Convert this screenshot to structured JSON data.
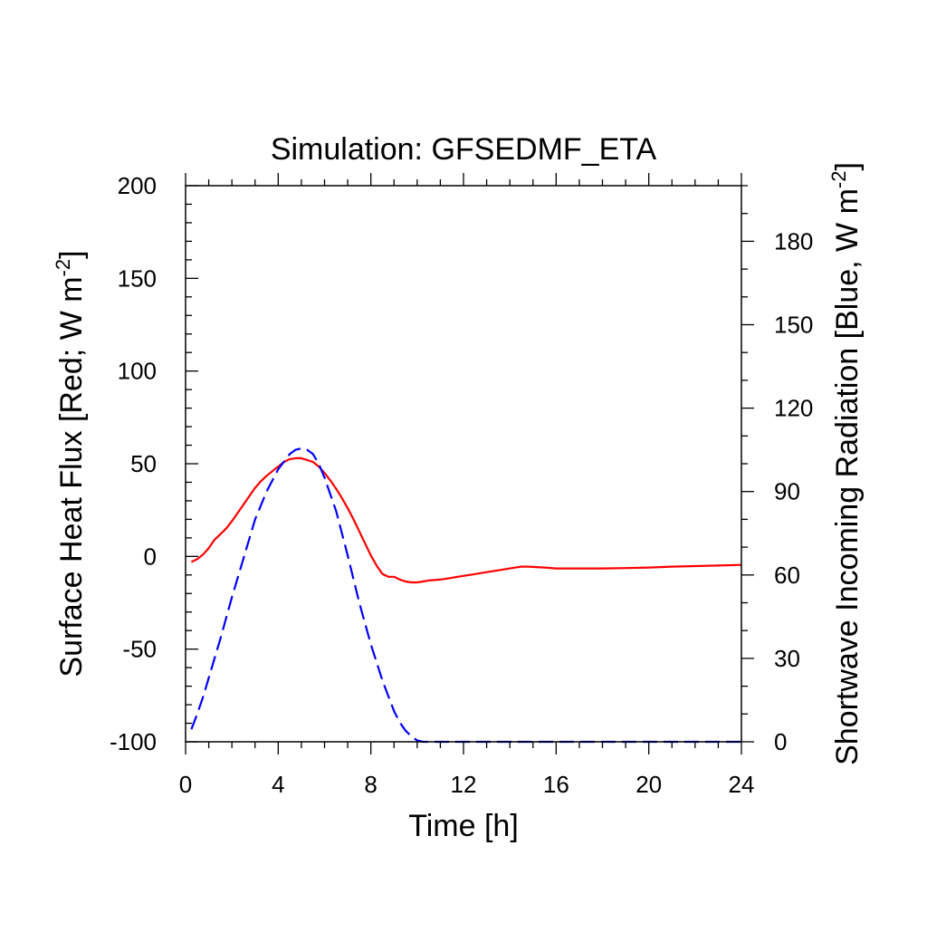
{
  "chart_data": {
    "type": "line",
    "title": "Simulation: GFSEDMF_ETA",
    "xlabel": "Time [h]",
    "ylabel_left": {
      "text": "Surface Heat Flux [Red; W m",
      "sup": "-2",
      "tail": "]"
    },
    "ylabel_right": {
      "text": "Shortwave Incoming Radiation [Blue, W m",
      "sup": "-2",
      "tail": "]"
    },
    "xlim": [
      0,
      24
    ],
    "ylim_left": [
      -100,
      200
    ],
    "ylim_right": [
      0,
      200
    ],
    "x_ticks": [
      "0",
      "4",
      "8",
      "12",
      "16",
      "20",
      "24"
    ],
    "y_left_ticks": [
      "-100",
      "-50",
      "0",
      "50",
      "100",
      "150",
      "200"
    ],
    "y_right_ticks": [
      "0",
      "30",
      "60",
      "90",
      "120",
      "150",
      "180"
    ],
    "grid": false,
    "series": [
      {
        "axis": "left",
        "color": "#ff0000",
        "dash": "solid",
        "x": [
          0.25,
          0.5,
          0.75,
          1.0,
          1.25,
          1.5,
          1.75,
          2.0,
          2.25,
          2.5,
          2.75,
          3.0,
          3.25,
          3.5,
          3.75,
          4.0,
          4.25,
          4.5,
          4.75,
          5.0,
          5.25,
          5.5,
          5.75,
          6.0,
          6.25,
          6.5,
          6.75,
          7.0,
          7.25,
          7.5,
          7.75,
          8.0,
          8.25,
          8.5,
          8.75,
          9.0,
          9.25,
          9.5,
          9.75,
          10.0,
          10.25,
          10.5,
          11.0,
          11.5,
          12.0,
          12.5,
          13.0,
          13.5,
          14.0,
          14.5,
          14.8,
          15.5,
          16.0,
          17.0,
          18.0,
          19.0,
          20.0,
          21.0,
          22.0,
          23.0,
          24.0
        ],
        "values": [
          -3,
          -1.5,
          1,
          4.5,
          9,
          12,
          15,
          19,
          23.5,
          28,
          32.5,
          37,
          40.5,
          43.5,
          46,
          48.5,
          51,
          52.5,
          53,
          53,
          52,
          51,
          48.5,
          45,
          41,
          36.5,
          31.5,
          26,
          20,
          13.5,
          7,
          0.5,
          -5,
          -9.5,
          -11,
          -11,
          -12.5,
          -13.5,
          -14,
          -14,
          -13.5,
          -13,
          -12.5,
          -11.5,
          -10.5,
          -9.5,
          -8.5,
          -7.5,
          -6.5,
          -5.5,
          -5.5,
          -6,
          -6.5,
          -6.5,
          -6.5,
          -6.3,
          -6,
          -5.5,
          -5.2,
          -4.9,
          -4.6
        ]
      },
      {
        "axis": "right",
        "color": "#0000ff",
        "dash": "dashed",
        "x": [
          0.25,
          0.5,
          0.75,
          1.0,
          1.5,
          2.0,
          2.5,
          3.0,
          3.5,
          4.0,
          4.5,
          4.75,
          5.0,
          5.25,
          5.5,
          5.75,
          6.0,
          6.5,
          7.0,
          7.5,
          8.0,
          8.5,
          9.0,
          9.25,
          9.5,
          9.75,
          10.0,
          10.25,
          10.5,
          11.0,
          12.0,
          14.0,
          16.0,
          18.0,
          20.0,
          22.0,
          24.0
        ],
        "values": [
          4.5,
          10,
          16,
          23,
          37,
          52,
          66,
          80,
          90,
          98,
          103.5,
          105,
          105.5,
          105,
          103.5,
          100,
          95,
          83,
          67,
          50,
          35,
          22,
          11,
          7,
          4,
          2,
          0.5,
          0,
          0,
          0,
          0,
          0,
          0,
          0,
          0,
          0,
          0
        ]
      }
    ]
  }
}
